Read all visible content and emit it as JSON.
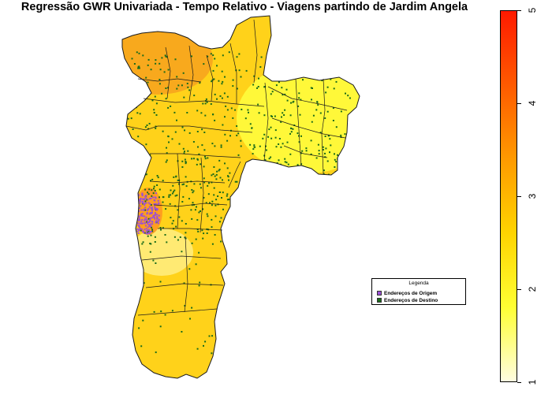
{
  "title": "Regressão GWR Univariada - Tempo Relativo - Viagens partindo de Jardim Angela",
  "legend": {
    "title": "Legenda",
    "items": [
      {
        "label": "Endereços de Origem",
        "color": "#9b4fd6"
      },
      {
        "label": "Endereços de Destino",
        "color": "#1a6b1a"
      }
    ]
  },
  "colorbar": {
    "min": 1,
    "max": 5,
    "ticks": [
      "1",
      "2",
      "3",
      "4",
      "5"
    ],
    "colors": [
      "#fffde0",
      "#ffff33",
      "#ffd400",
      "#ff9a00",
      "#ff5a00",
      "#ff1a00"
    ]
  },
  "map_colors": {
    "base": "#ffd21a",
    "north_west": "#f7a21e",
    "east": "#ffff40",
    "south_west": "#fff08a",
    "origin_zone": "#ff9820",
    "boundary": "#1a1a1a"
  }
}
